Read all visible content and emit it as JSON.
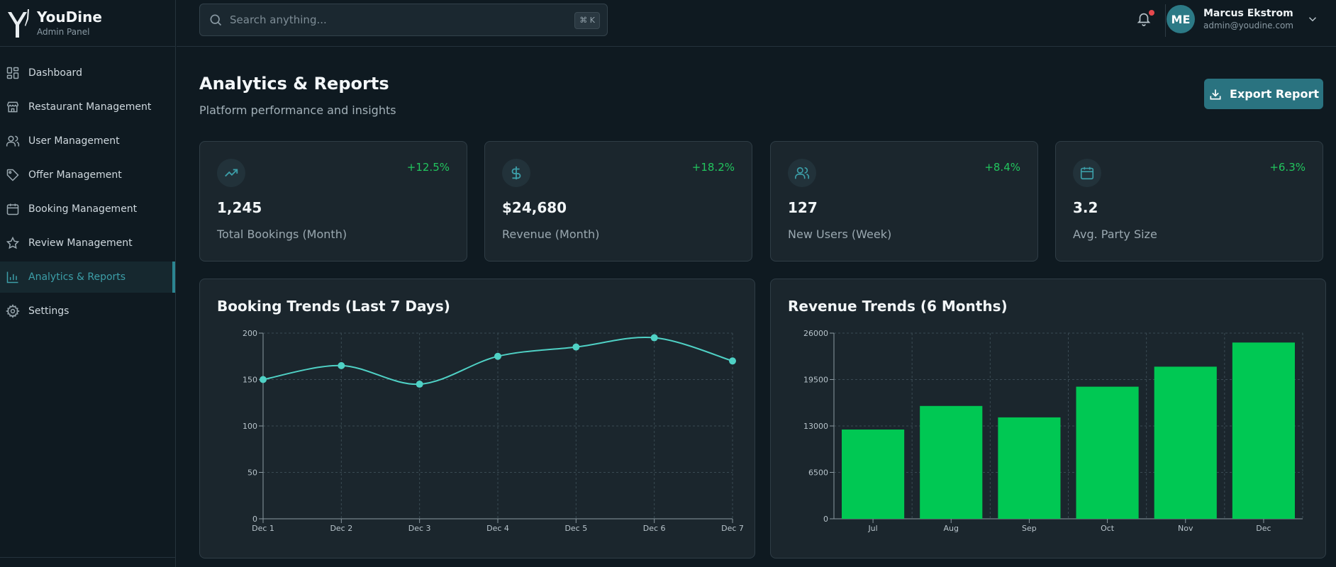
{
  "brand": {
    "name": "YouDine",
    "subtitle": "Admin Panel"
  },
  "sidebar": {
    "items": [
      {
        "label": "Dashboard",
        "icon": "grid-icon",
        "active": false
      },
      {
        "label": "Restaurant Management",
        "icon": "store-icon",
        "active": false
      },
      {
        "label": "User Management",
        "icon": "users-icon",
        "active": false
      },
      {
        "label": "Offer Management",
        "icon": "tag-icon",
        "active": false
      },
      {
        "label": "Booking Management",
        "icon": "calendar-icon",
        "active": false
      },
      {
        "label": "Review Management",
        "icon": "star-icon",
        "active": false
      },
      {
        "label": "Analytics & Reports",
        "icon": "bar-chart-icon",
        "active": true
      },
      {
        "label": "Settings",
        "icon": "gear-icon",
        "active": false
      }
    ]
  },
  "header": {
    "search_placeholder": "Search anything...",
    "shortcut": "⌘ K",
    "user": {
      "initials": "ME",
      "name": "Marcus Ekstrom",
      "email": "admin@youdine.com"
    }
  },
  "page": {
    "title": "Analytics & Reports",
    "subtitle": "Platform performance and insights",
    "export_label": "Export Report"
  },
  "stats": [
    {
      "icon": "trending-up-icon",
      "change": "+12.5%",
      "value": "1,245",
      "label": "Total Bookings (Month)"
    },
    {
      "icon": "dollar-icon",
      "change": "+18.2%",
      "value": "$24,680",
      "label": "Revenue (Month)"
    },
    {
      "icon": "users-icon",
      "change": "+8.4%",
      "value": "127",
      "label": "New Users (Week)"
    },
    {
      "icon": "calendar-icon",
      "change": "+6.3%",
      "value": "3.2",
      "label": "Avg. Party Size"
    }
  ],
  "colors": {
    "accent": "#2a7380",
    "line": "#4fd1c5",
    "bar": "#00c853",
    "positive": "#22c55e"
  },
  "chart_data": [
    {
      "type": "line",
      "title": "Booking Trends (Last 7 Days)",
      "categories": [
        "Dec 1",
        "Dec 2",
        "Dec 3",
        "Dec 4",
        "Dec 5",
        "Dec 6",
        "Dec 7"
      ],
      "values": [
        150,
        165,
        145,
        175,
        185,
        195,
        170
      ],
      "ylim": [
        0,
        200
      ],
      "yticks": [
        "0",
        "50",
        "100",
        "150",
        "200"
      ],
      "grid": true
    },
    {
      "type": "bar",
      "title": "Revenue Trends (6 Months)",
      "categories": [
        "Jul",
        "Aug",
        "Sep",
        "Oct",
        "Nov",
        "Dec"
      ],
      "values": [
        12500,
        15800,
        14200,
        18500,
        21300,
        24680
      ],
      "ylim": [
        0,
        26000
      ],
      "yticks": [
        "0",
        "6500",
        "13000",
        "19500",
        "26000"
      ],
      "grid": true
    }
  ]
}
